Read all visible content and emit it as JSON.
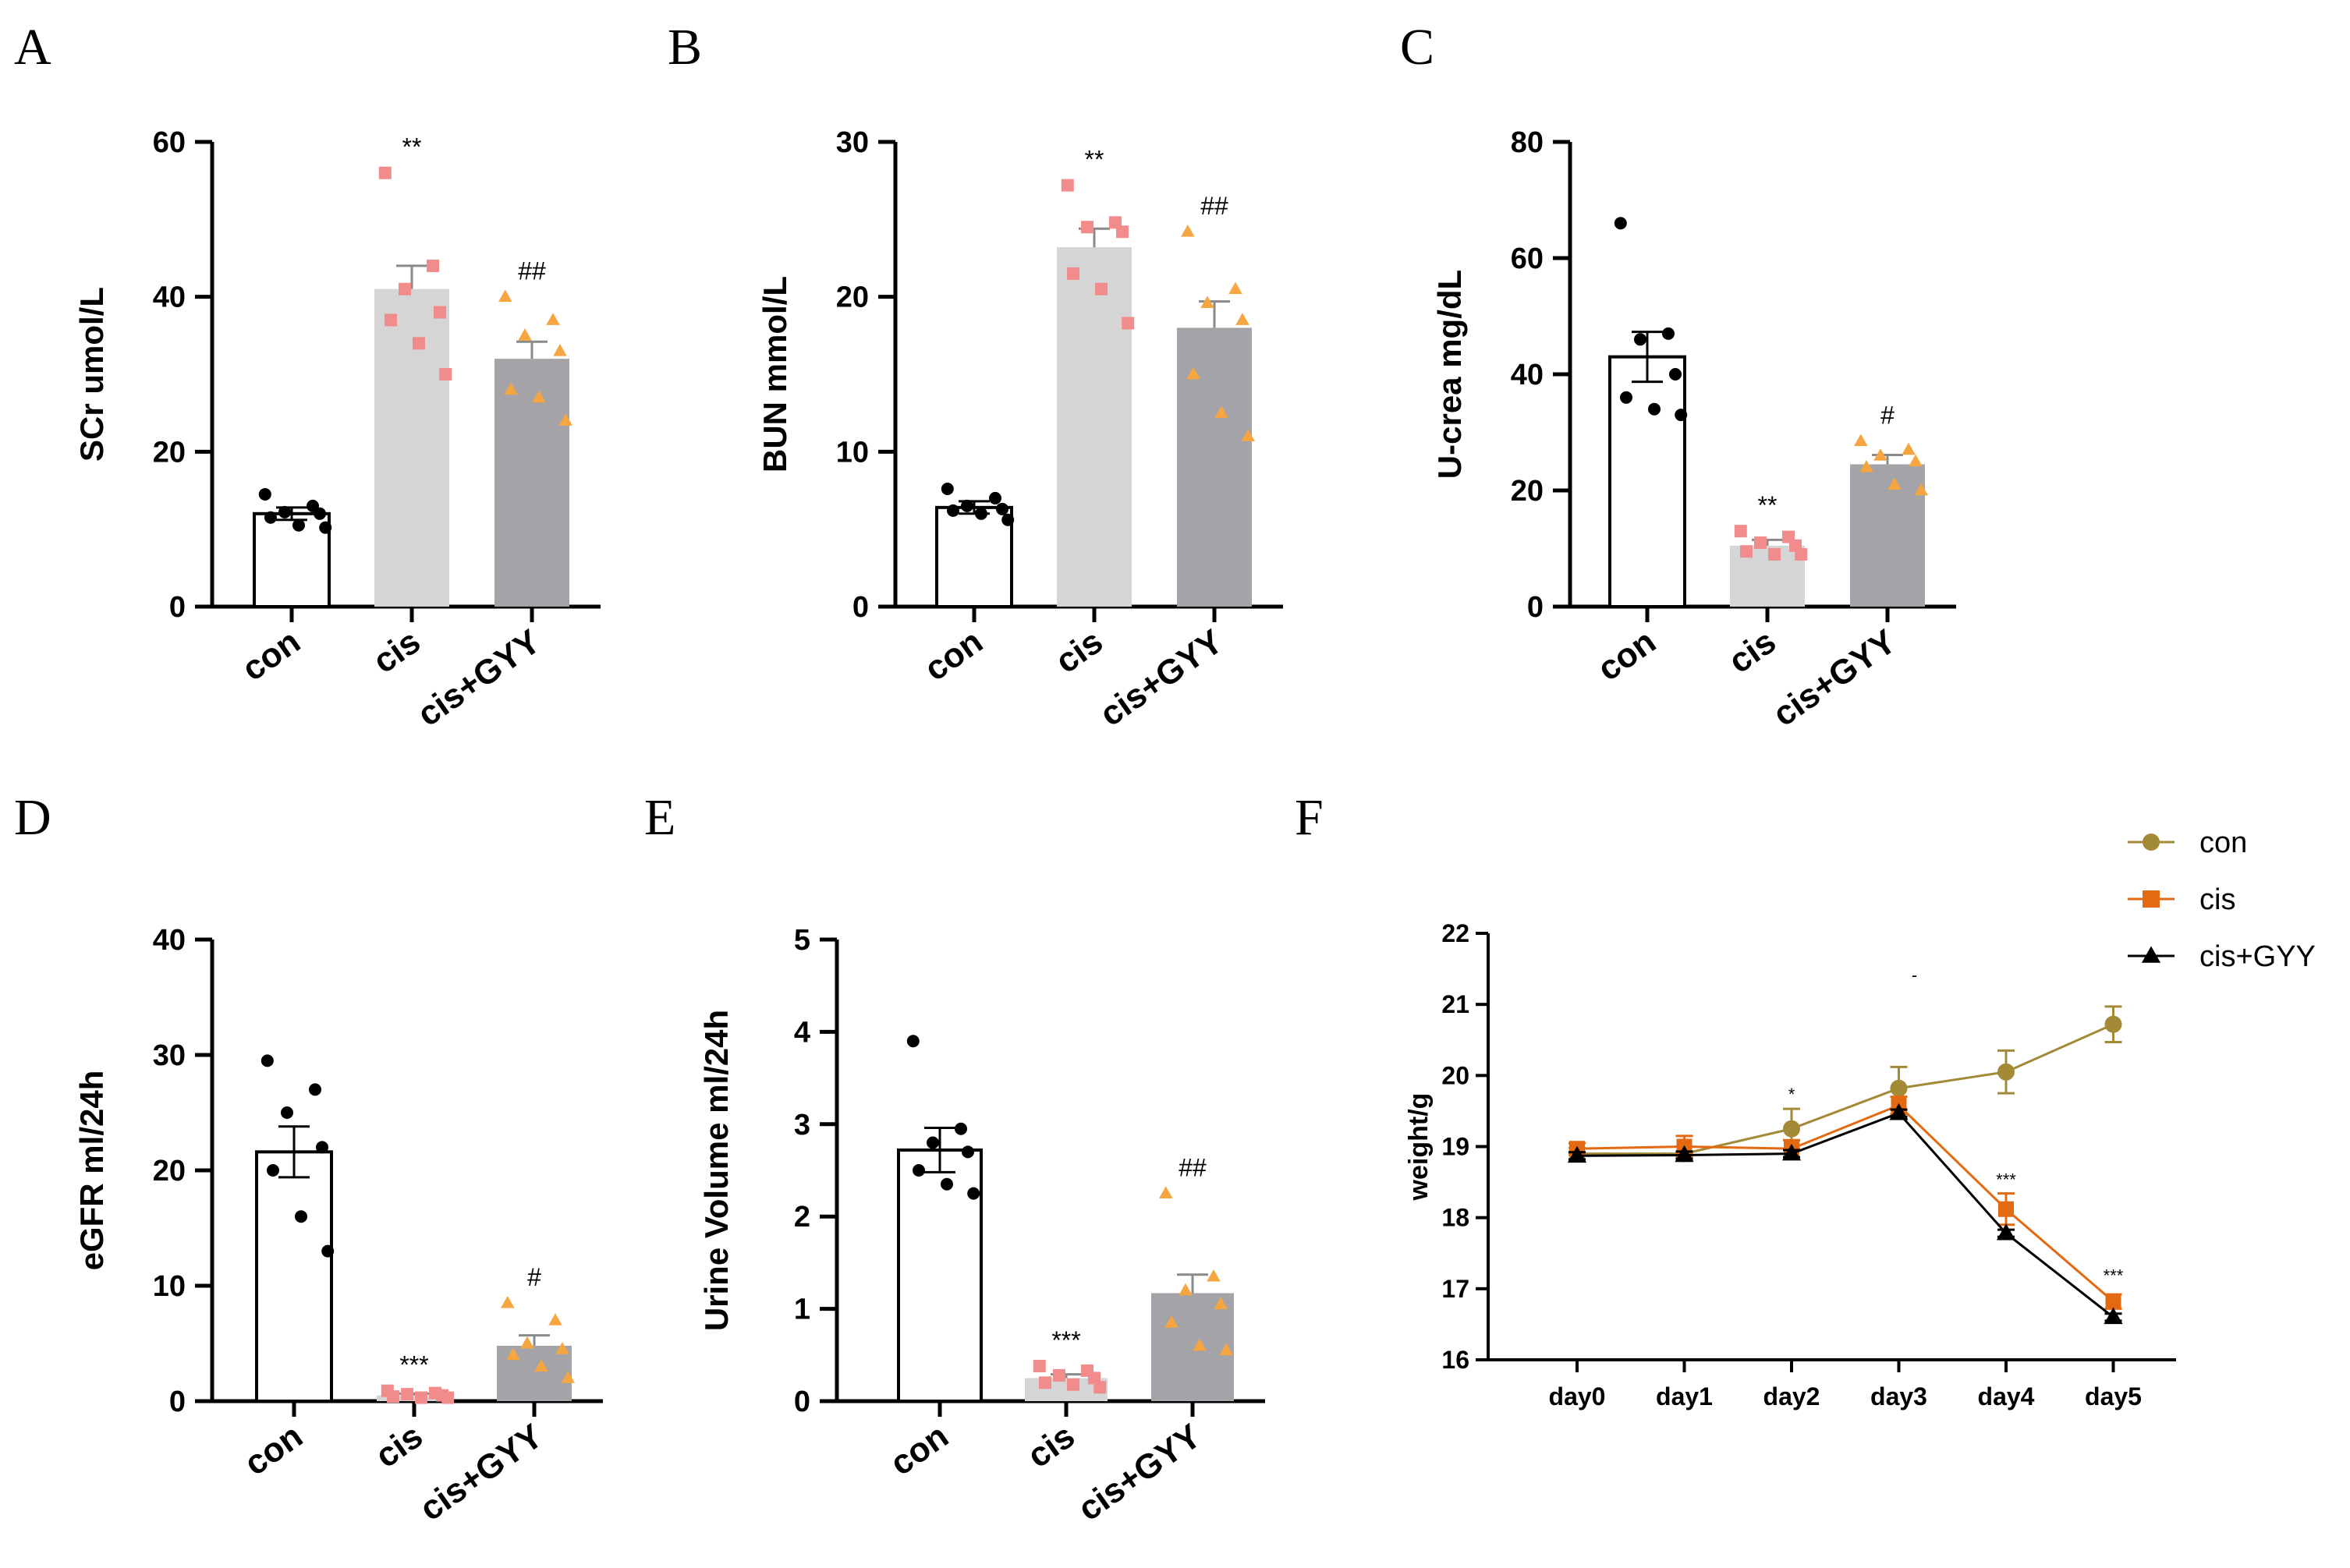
{
  "colors": {
    "con_bar": "#ffffff",
    "cis_bar": "#d5d5d5",
    "gyy_bar": "#a3a3a8",
    "con_dot": "#000000",
    "cis_dot": "#f28b8b",
    "gyy_dot": "#f6a640",
    "line_con": "#a38a36",
    "line_cis": "#e36a10",
    "line_gyy": "#000000"
  },
  "chart_data": [
    {
      "panel": "A",
      "type": "bar",
      "ylabel": "SCr  umol/L",
      "ylim": [
        0,
        60
      ],
      "yticks": [
        "0",
        "20",
        "40",
        "60"
      ],
      "categories": [
        "con",
        "cis",
        "cis+GYY"
      ],
      "values": [
        12,
        41,
        32
      ],
      "sem": [
        0.8,
        3.0,
        2.2
      ],
      "points": [
        [
          14.5,
          13,
          12.2,
          12,
          11.5,
          10.5,
          10.2
        ],
        [
          56,
          44,
          41,
          38,
          37,
          34,
          30
        ],
        [
          40,
          37,
          35,
          33,
          28,
          27,
          24
        ]
      ],
      "annotations": [
        "",
        "**",
        "##"
      ]
    },
    {
      "panel": "B",
      "type": "bar",
      "ylabel": "BUN  mmol/L",
      "ylim": [
        0,
        30
      ],
      "yticks": [
        "0",
        "10",
        "20",
        "30"
      ],
      "categories": [
        "con",
        "cis",
        "cis+GYY"
      ],
      "values": [
        6.4,
        23.2,
        18.0
      ],
      "sem": [
        0.4,
        1.2,
        1.7
      ],
      "points": [
        [
          7.6,
          7.0,
          6.5,
          6.3,
          6.2,
          6.0,
          5.6
        ],
        [
          27.2,
          24.8,
          24.5,
          24.2,
          21.5,
          20.5,
          18.3
        ],
        [
          24.2,
          20.5,
          19.6,
          18.5,
          15.0,
          12.5,
          11.0
        ]
      ],
      "annotations": [
        "",
        "**",
        "##"
      ]
    },
    {
      "panel": "C",
      "type": "bar",
      "ylabel": "U-crea  mg/dL",
      "ylim": [
        0,
        80
      ],
      "yticks": [
        "0",
        "20",
        "40",
        "60",
        "80"
      ],
      "categories": [
        "con",
        "cis",
        "cis+GYY"
      ],
      "values": [
        43,
        10.5,
        24.5
      ],
      "sem": [
        4.3,
        1.0,
        1.6
      ],
      "points": [
        [
          66,
          47,
          46,
          40,
          36,
          34,
          33
        ],
        [
          13,
          12,
          11,
          10.5,
          9.5,
          9,
          9
        ],
        [
          28.5,
          27,
          26,
          25,
          24,
          21,
          20
        ]
      ],
      "annotations": [
        "",
        "**",
        "#"
      ]
    },
    {
      "panel": "D",
      "type": "bar",
      "ylabel": "eGFR ml/24h",
      "ylim": [
        0,
        40
      ],
      "yticks": [
        "0",
        "10",
        "20",
        "30",
        "40"
      ],
      "categories": [
        "con",
        "cis",
        "cis+GYY"
      ],
      "values": [
        21.6,
        0.5,
        4.8
      ],
      "sem": [
        2.2,
        0.15,
        0.9
      ],
      "points": [
        [
          29.5,
          27,
          25,
          22,
          20,
          16,
          13
        ],
        [
          0.9,
          0.7,
          0.6,
          0.5,
          0.4,
          0.3,
          0.3
        ],
        [
          8.5,
          7,
          5,
          4.5,
          4,
          3,
          2
        ]
      ],
      "annotations": [
        "",
        "***",
        "#"
      ]
    },
    {
      "panel": "E",
      "type": "bar",
      "ylabel": "Urine Volume ml/24h",
      "ylim": [
        0,
        5
      ],
      "yticks": [
        "0",
        "1",
        "2",
        "3",
        "4",
        "5"
      ],
      "categories": [
        "con",
        "cis",
        "cis+GYY"
      ],
      "values": [
        2.72,
        0.25,
        1.17
      ],
      "sem": [
        0.24,
        0.04,
        0.2
      ],
      "points": [
        [
          3.9,
          2.95,
          2.8,
          2.7,
          2.5,
          2.35,
          2.25
        ],
        [
          0.38,
          0.33,
          0.28,
          0.25,
          0.2,
          0.18,
          0.15
        ],
        [
          2.25,
          1.35,
          1.2,
          1.05,
          0.85,
          0.6,
          0.55
        ]
      ],
      "annotations": [
        "",
        "***",
        "##"
      ]
    },
    {
      "panel": "F",
      "type": "line",
      "ylabel": "weight/g",
      "ylim": [
        16,
        22
      ],
      "yticks": [
        "16",
        "17",
        "18",
        "19",
        "20",
        "21",
        "22"
      ],
      "categories": [
        "day0",
        "day1",
        "day2",
        "day3",
        "day4",
        "day5"
      ],
      "series": [
        {
          "name": "con",
          "values": [
            18.9,
            18.9,
            19.25,
            19.82,
            20.05,
            20.72
          ],
          "sem": [
            0.08,
            0.1,
            0.28,
            0.3,
            0.3,
            0.25
          ]
        },
        {
          "name": "cis",
          "values": [
            18.97,
            19.0,
            18.97,
            19.58,
            18.12,
            16.82
          ],
          "sem": [
            0.08,
            0.15,
            0.12,
            0.12,
            0.22,
            0.1
          ]
        },
        {
          "name": "cis+GYY",
          "values": [
            18.87,
            18.88,
            18.9,
            19.47,
            17.78,
            16.6
          ],
          "sem": [
            0.05,
            0.05,
            0.05,
            0.05,
            0.05,
            0.05
          ]
        }
      ],
      "annotations": [
        "",
        "",
        "*",
        "",
        "***",
        "***"
      ],
      "extra_mark": "-"
    }
  ]
}
